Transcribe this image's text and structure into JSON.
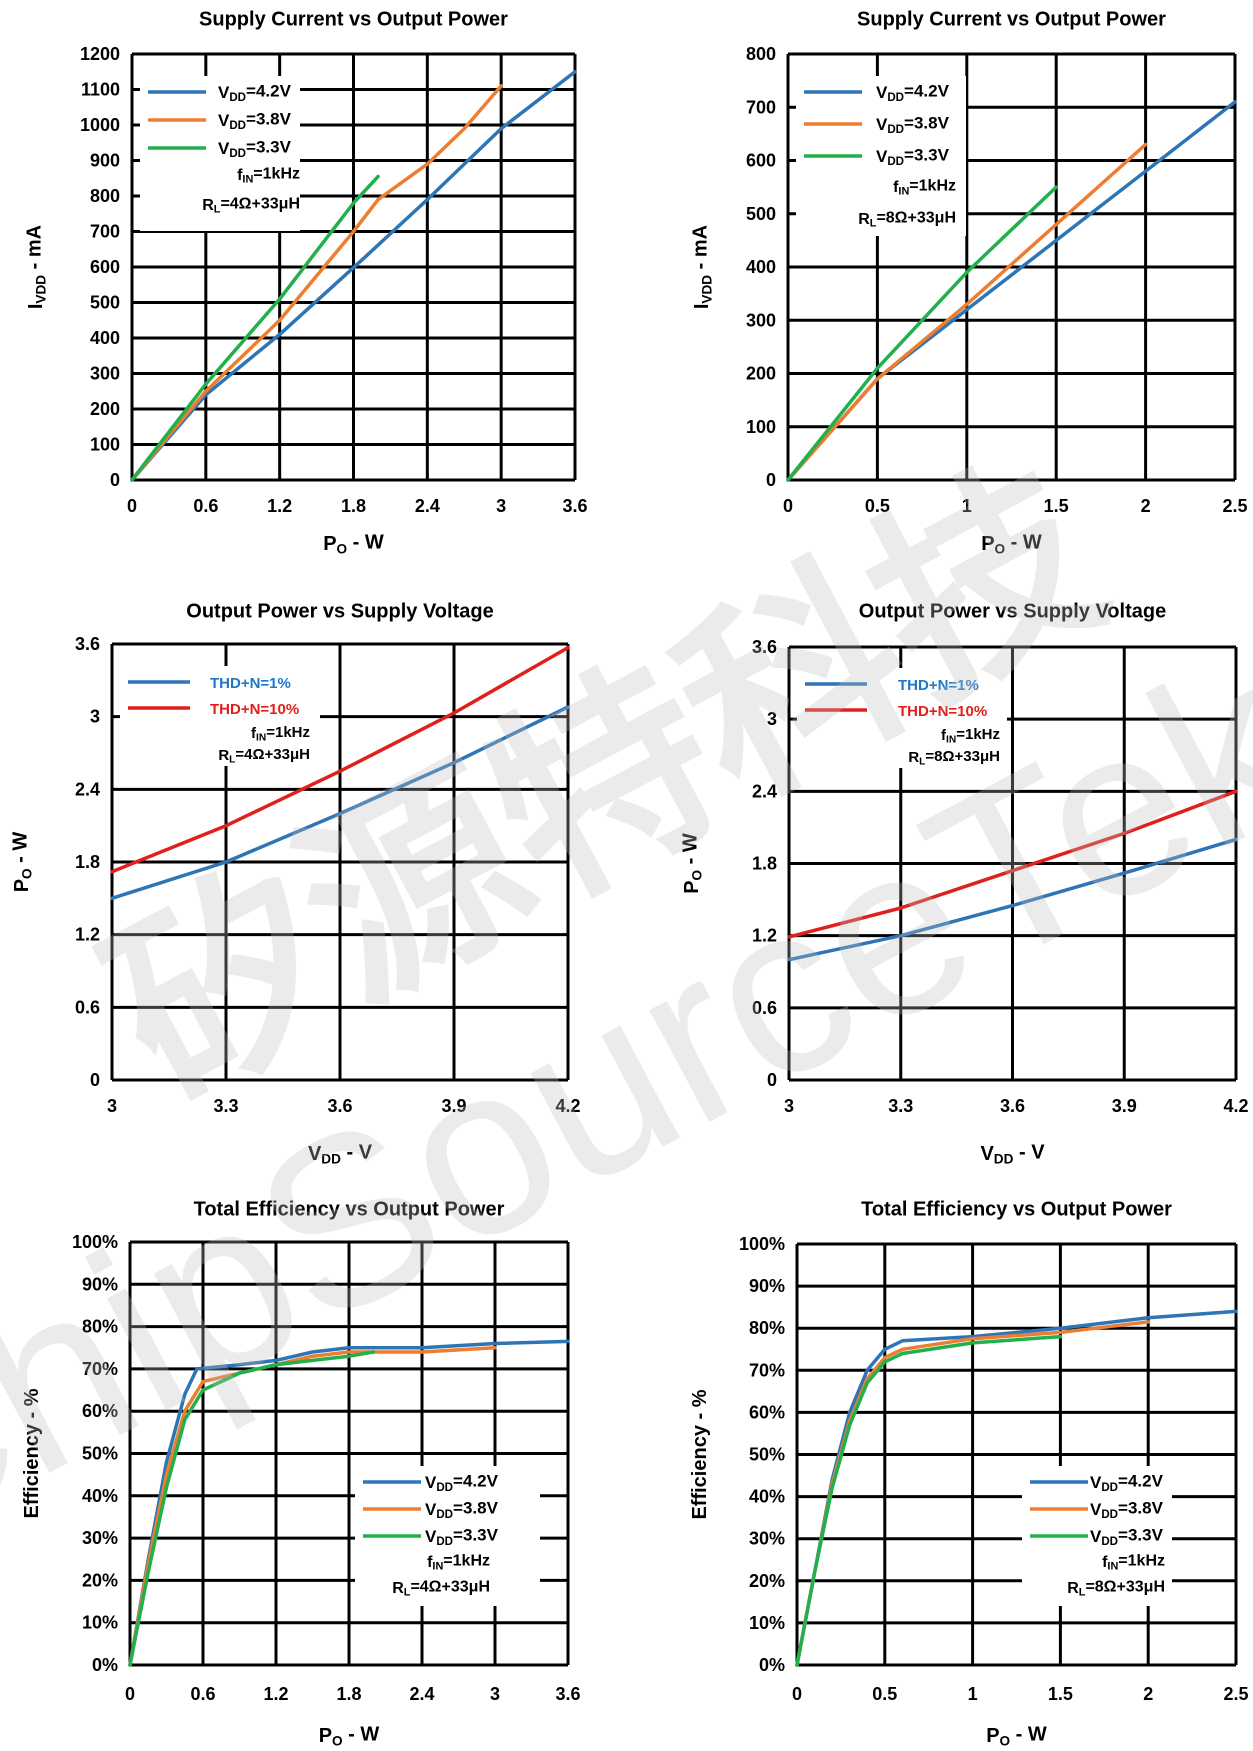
{
  "watermark": {
    "cn": "矽源特科技",
    "en": "ChipSourceTek",
    "color": "#bdbdbd"
  },
  "colors": {
    "blue": "#2e75b6",
    "orange": "#ed7d31",
    "green": "#22b04c",
    "red": "#e0201c",
    "legend_blue_text": "#1f77c8",
    "legend_red_text": "#e0201c"
  },
  "chart_data": [
    {
      "type": "line",
      "title": "Supply Current vs Output Power",
      "xlabel": "Po - W",
      "ylabel": "IVDD - mA",
      "xlim": [
        0,
        3.6
      ],
      "ylim": [
        0,
        1200
      ],
      "xticks": [
        "0",
        "0.6",
        "1.2",
        "1.8",
        "2.4",
        "3",
        "3.6"
      ],
      "yticks": [
        "0",
        "100",
        "200",
        "300",
        "400",
        "500",
        "600",
        "700",
        "800",
        "900",
        "1000",
        "1100",
        "1200"
      ],
      "grid": true,
      "legend": "top-left",
      "notes": [
        "fIN=1kHz",
        "RL=4Ω+33μH"
      ],
      "series": [
        {
          "name": "VDD=4.2V",
          "color": "blue",
          "points": [
            [
              0,
              0
            ],
            [
              0.6,
              240
            ],
            [
              1.2,
              410
            ],
            [
              1.9,
              630
            ],
            [
              2.4,
              790
            ],
            [
              3.0,
              990
            ],
            [
              3.6,
              1150
            ]
          ]
        },
        {
          "name": "VDD=3.8V",
          "color": "orange",
          "points": [
            [
              0,
              0
            ],
            [
              0.6,
              250
            ],
            [
              1.2,
              450
            ],
            [
              1.8,
              700
            ],
            [
              2.0,
              790
            ],
            [
              2.4,
              890
            ],
            [
              2.7,
              990
            ],
            [
              3.0,
              1110
            ]
          ]
        },
        {
          "name": "VDD=3.3V",
          "color": "green",
          "points": [
            [
              0,
              0
            ],
            [
              0.6,
              270
            ],
            [
              1.2,
              510
            ],
            [
              1.8,
              780
            ],
            [
              2.0,
              855
            ]
          ]
        }
      ]
    },
    {
      "type": "line",
      "title": "Supply Current vs Output Power",
      "xlabel": "Po - W",
      "ylabel": "IVDD - mA",
      "xlim": [
        0,
        2.5
      ],
      "ylim": [
        0,
        800
      ],
      "xticks": [
        "0",
        "0.5",
        "1",
        "1.5",
        "2",
        "2.5"
      ],
      "yticks": [
        "0",
        "100",
        "200",
        "300",
        "400",
        "500",
        "600",
        "700",
        "800"
      ],
      "grid": true,
      "legend": "top-left",
      "notes": [
        "fIN=1kHz",
        "RL=8Ω+33μH"
      ],
      "series": [
        {
          "name": "VDD=4.2V",
          "color": "blue",
          "points": [
            [
              0,
              0
            ],
            [
              0.5,
              190
            ],
            [
              1.0,
              320
            ],
            [
              1.5,
              450
            ],
            [
              2.0,
              580
            ],
            [
              2.5,
              710
            ]
          ]
        },
        {
          "name": "VDD=3.8V",
          "color": "orange",
          "points": [
            [
              0,
              0
            ],
            [
              0.5,
              190
            ],
            [
              1.0,
              330
            ],
            [
              1.5,
              480
            ],
            [
              2.0,
              630
            ]
          ]
        },
        {
          "name": "VDD=3.3V",
          "color": "green",
          "points": [
            [
              0,
              0
            ],
            [
              0.5,
              210
            ],
            [
              1.0,
              390
            ],
            [
              1.5,
              550
            ]
          ]
        }
      ]
    },
    {
      "type": "line",
      "title": "Output Power vs  Supply Voltage",
      "xlabel": "VDD - V",
      "ylabel": "Po - W",
      "xlim": [
        3,
        4.2
      ],
      "ylim": [
        0,
        3.6
      ],
      "xticks": [
        "3",
        "3.3",
        "3.6",
        "3.9",
        "4.2"
      ],
      "yticks": [
        "0",
        "0.6",
        "1.2",
        "1.8",
        "2.4",
        "3",
        "3.6"
      ],
      "grid": true,
      "legend": "top-left",
      "notes": [
        "fIN=1kHz",
        "RL=4Ω+33μH"
      ],
      "series": [
        {
          "name": "THD+N=1%",
          "color": "blue",
          "points": [
            [
              3.0,
              1.5
            ],
            [
              3.3,
              1.8
            ],
            [
              3.6,
              2.2
            ],
            [
              3.9,
              2.62
            ],
            [
              4.2,
              3.08
            ]
          ]
        },
        {
          "name": "THD+N=10%",
          "color": "red",
          "points": [
            [
              3.0,
              1.72
            ],
            [
              3.3,
              2.1
            ],
            [
              3.6,
              2.55
            ],
            [
              3.9,
              3.03
            ],
            [
              4.2,
              3.57
            ]
          ]
        }
      ]
    },
    {
      "type": "line",
      "title": "Output Power vs  Supply Voltage",
      "xlabel": "VDD - V",
      "ylabel": "Po - W",
      "xlim": [
        3,
        4.2
      ],
      "ylim": [
        0,
        3.6
      ],
      "xticks": [
        "3",
        "3.3",
        "3.6",
        "3.9",
        "4.2"
      ],
      "yticks": [
        "0",
        "0.6",
        "1.2",
        "1.8",
        "2.4",
        "3",
        "3.6"
      ],
      "grid": true,
      "legend": "top-left",
      "notes": [
        "fIN=1kHz",
        "RL=8Ω+33μH"
      ],
      "series": [
        {
          "name": "THD+N=1%",
          "color": "blue",
          "points": [
            [
              3.0,
              1.0
            ],
            [
              3.3,
              1.2
            ],
            [
              3.6,
              1.45
            ],
            [
              3.9,
              1.72
            ],
            [
              4.2,
              2.0
            ]
          ]
        },
        {
          "name": "THD+N=10%",
          "color": "red",
          "points": [
            [
              3.0,
              1.19
            ],
            [
              3.3,
              1.43
            ],
            [
              3.6,
              1.74
            ],
            [
              3.9,
              2.05
            ],
            [
              4.2,
              2.4
            ]
          ]
        }
      ]
    },
    {
      "type": "line",
      "title": "Total Efficiency vs Output Power",
      "xlabel": "Po - W",
      "ylabel": "Efficiency - %",
      "xlim": [
        0,
        3.6
      ],
      "ylim": [
        0,
        100
      ],
      "xticks": [
        "0",
        "0.6",
        "1.2",
        "1.8",
        "2.4",
        "3",
        "3.6"
      ],
      "yticks": [
        "0%",
        "10%",
        "20%",
        "30%",
        "40%",
        "50%",
        "60%",
        "70%",
        "80%",
        "90%",
        "100%"
      ],
      "grid": true,
      "legend": "bottom-right",
      "notes": [
        "fIN=1kHz",
        "RL=4Ω+33μH"
      ],
      "series": [
        {
          "name": "VDD=4.2V",
          "color": "blue",
          "points": [
            [
              0,
              0
            ],
            [
              0.15,
              25
            ],
            [
              0.3,
              48
            ],
            [
              0.45,
              64
            ],
            [
              0.55,
              70
            ],
            [
              0.9,
              71
            ],
            [
              1.2,
              72
            ],
            [
              1.5,
              74
            ],
            [
              1.8,
              75
            ],
            [
              2.4,
              75
            ],
            [
              3.0,
              76
            ],
            [
              3.6,
              76.5
            ]
          ]
        },
        {
          "name": "VDD=3.8V",
          "color": "orange",
          "points": [
            [
              0,
              0
            ],
            [
              0.15,
              24
            ],
            [
              0.3,
              45
            ],
            [
              0.45,
              60
            ],
            [
              0.6,
              67
            ],
            [
              0.9,
              69
            ],
            [
              1.2,
              71
            ],
            [
              1.5,
              73
            ],
            [
              1.8,
              74
            ],
            [
              2.4,
              74
            ],
            [
              3.0,
              75
            ]
          ]
        },
        {
          "name": "VDD=3.3V",
          "color": "green",
          "points": [
            [
              0,
              0
            ],
            [
              0.15,
              22
            ],
            [
              0.3,
              42
            ],
            [
              0.45,
              58
            ],
            [
              0.6,
              65
            ],
            [
              0.9,
              69
            ],
            [
              1.2,
              71
            ],
            [
              1.5,
              72
            ],
            [
              1.8,
              73
            ],
            [
              2.0,
              74
            ]
          ]
        }
      ]
    },
    {
      "type": "line",
      "title": "Total Efficiency vs Output Power",
      "xlabel": "Po - W",
      "ylabel": "Efficiency - %",
      "xlim": [
        0,
        2.5
      ],
      "ylim": [
        0,
        100
      ],
      "xticks": [
        "0",
        "0.5",
        "1",
        "1.5",
        "2",
        "2.5"
      ],
      "yticks": [
        "0%",
        "10%",
        "20%",
        "30%",
        "40%",
        "50%",
        "60%",
        "70%",
        "80%",
        "90%",
        "100%"
      ],
      "grid": true,
      "legend": "bottom-right",
      "notes": [
        "fIN=1kHz",
        "RL=8Ω+33μH"
      ],
      "series": [
        {
          "name": "VDD=4.2V",
          "color": "blue",
          "points": [
            [
              0,
              0
            ],
            [
              0.1,
              22
            ],
            [
              0.2,
              44
            ],
            [
              0.3,
              60
            ],
            [
              0.4,
              70
            ],
            [
              0.5,
              75
            ],
            [
              0.6,
              77
            ],
            [
              1.0,
              78
            ],
            [
              1.5,
              80
            ],
            [
              2.0,
              82.5
            ],
            [
              2.5,
              84
            ]
          ]
        },
        {
          "name": "VDD=3.8V",
          "color": "orange",
          "points": [
            [
              0,
              0
            ],
            [
              0.1,
              22
            ],
            [
              0.2,
              43
            ],
            [
              0.3,
              58
            ],
            [
              0.4,
              68
            ],
            [
              0.5,
              73
            ],
            [
              0.6,
              75
            ],
            [
              1.0,
              77.5
            ],
            [
              1.5,
              79
            ],
            [
              2.0,
              81.5
            ]
          ]
        },
        {
          "name": "VDD=3.3V",
          "color": "green",
          "points": [
            [
              0,
              0
            ],
            [
              0.1,
              22
            ],
            [
              0.2,
              42
            ],
            [
              0.3,
              57
            ],
            [
              0.4,
              67
            ],
            [
              0.5,
              72
            ],
            [
              0.6,
              74
            ],
            [
              1.0,
              76.5
            ],
            [
              1.5,
              78
            ]
          ]
        }
      ]
    }
  ]
}
